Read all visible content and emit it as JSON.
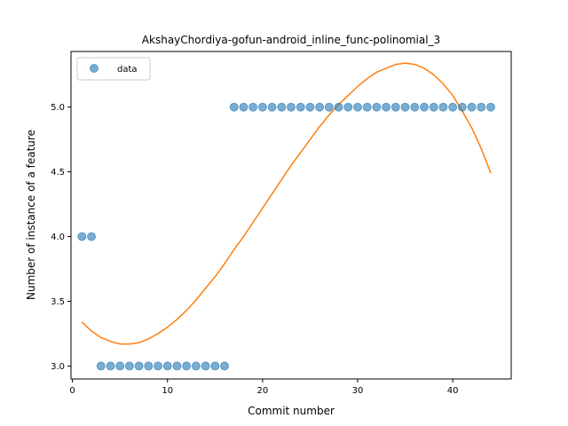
{
  "chart_data": {
    "type": "scatter",
    "title": "AkshayChordiya-gofun-android_inline_func-polinomial_3",
    "xlabel": "Commit number",
    "ylabel": "Number of instance of a feature",
    "xlim": [
      -0.15,
      46.15
    ],
    "ylim": [
      2.9,
      5.43
    ],
    "xticks": [
      0,
      10,
      20,
      30,
      40
    ],
    "yticks": [
      3.0,
      3.5,
      4.0,
      4.5,
      5.0
    ],
    "ytick_labels": [
      "3.0",
      "3.5",
      "4.0",
      "4.5",
      "5.0"
    ],
    "grid": false,
    "legend": {
      "placement": "top-left",
      "entries": [
        "data"
      ]
    },
    "series": [
      {
        "name": "data",
        "kind": "scatter",
        "color": "#1f77b4",
        "x": [
          1,
          2,
          3,
          4,
          5,
          6,
          7,
          8,
          9,
          10,
          11,
          12,
          13,
          14,
          15,
          16,
          17,
          18,
          19,
          20,
          21,
          22,
          23,
          24,
          25,
          26,
          27,
          28,
          29,
          30,
          31,
          32,
          33,
          34,
          35,
          36,
          37,
          38,
          39,
          40,
          41,
          42,
          43,
          44
        ],
        "y": [
          4,
          4,
          3,
          3,
          3,
          3,
          3,
          3,
          3,
          3,
          3,
          3,
          3,
          3,
          3,
          3,
          5,
          5,
          5,
          5,
          5,
          5,
          5,
          5,
          5,
          5,
          5,
          5,
          5,
          5,
          5,
          5,
          5,
          5,
          5,
          5,
          5,
          5,
          5,
          5,
          5,
          5,
          5,
          5
        ]
      },
      {
        "kind": "line",
        "color": "#ff7f0e",
        "x": [
          1,
          2,
          3,
          4,
          5,
          6,
          7,
          8,
          9,
          10,
          11,
          12,
          13,
          14,
          15,
          16,
          17,
          18,
          19,
          20,
          21,
          22,
          23,
          24,
          25,
          26,
          27,
          28,
          29,
          30,
          31,
          32,
          33,
          34,
          35,
          36,
          37,
          38,
          39,
          40,
          41,
          42,
          43,
          44
        ],
        "y": [
          3.34,
          3.27,
          3.22,
          3.19,
          3.17,
          3.17,
          3.18,
          3.21,
          3.25,
          3.3,
          3.36,
          3.43,
          3.51,
          3.6,
          3.69,
          3.79,
          3.9,
          4.0,
          4.11,
          4.22,
          4.33,
          4.44,
          4.55,
          4.65,
          4.75,
          4.85,
          4.94,
          5.02,
          5.09,
          5.16,
          5.22,
          5.27,
          5.3,
          5.33,
          5.34,
          5.33,
          5.3,
          5.25,
          5.18,
          5.09,
          4.97,
          4.84,
          4.68,
          4.49
        ]
      }
    ]
  }
}
